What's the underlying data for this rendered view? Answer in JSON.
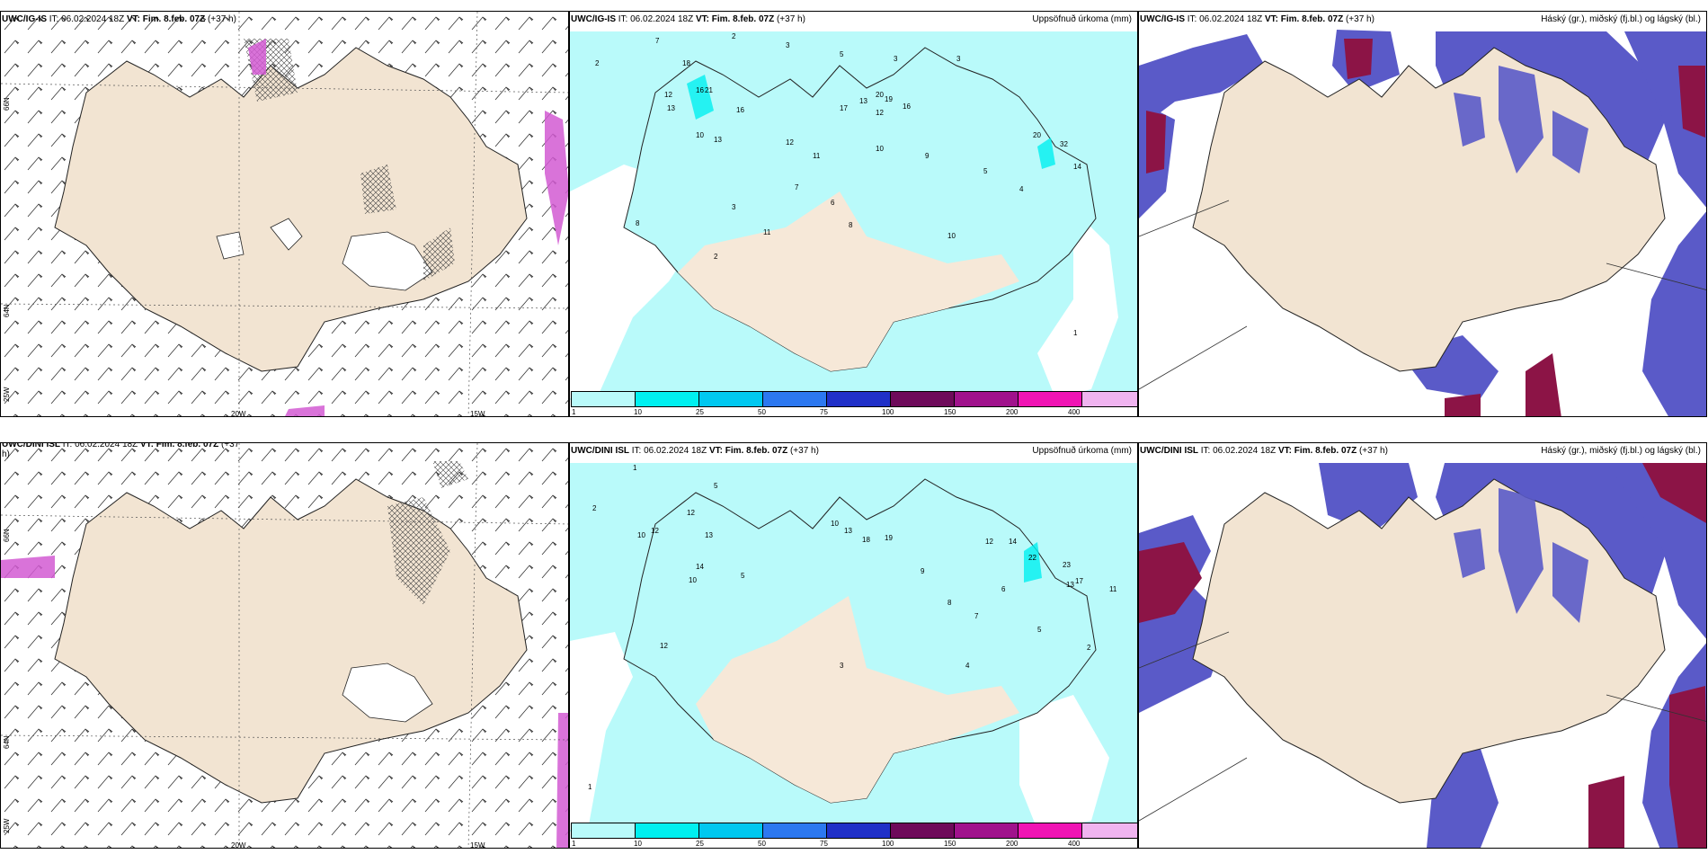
{
  "panels": [
    {
      "id": "r1c1",
      "title_model": "UWC/IG-IS",
      "title_it": " IT: 06.02.2024 18Z ",
      "title_vt": "VT: Fim. 8.feb. 07Z",
      "title_lead": " (+37 h)",
      "right": ""
    },
    {
      "id": "r1c2",
      "title_model": "UWC/IG-IS",
      "title_it": " IT: 06.02.2024 18Z ",
      "title_vt": "VT: Fim. 8.feb. 07Z",
      "title_lead": " (+37 h)",
      "right": "Uppsöfnuð úrkoma (mm)"
    },
    {
      "id": "r1c3",
      "title_model": "UWC/IG-IS",
      "title_it": " IT: 06.02.2024 18Z ",
      "title_vt": "VT: Fim. 8.feb. 07Z",
      "title_lead": " (+37 h)",
      "right": "Háský (gr.), miðský (fj.bl.) og lágský (bl.)"
    },
    {
      "id": "r2c1",
      "title_model": "UWC/DINI ISL",
      "title_it": " IT: 06.02.2024 18Z ",
      "title_vt": "VT: Fim. 8.feb. 07Z",
      "title_lead": " (+37",
      "right": "",
      "wrap": "h)"
    },
    {
      "id": "r2c2",
      "title_model": "UWC/DINI ISL",
      "title_it": " IT: 06.02.2024 18Z ",
      "title_vt": "VT: Fim. 8.feb. 07Z",
      "title_lead": " (+37 h)",
      "right": "Uppsöfnuð úrkoma (mm)"
    },
    {
      "id": "r2c3",
      "title_model": "UWC/DINI ISL",
      "title_it": " IT: 06.02.2024 18Z ",
      "title_vt": "VT: Fim. 8.feb. 07Z",
      "title_lead": " (+37 h)",
      "right": "Háský (gr.), miðský (fj.bl.) og lágský (bl.)"
    }
  ],
  "precip_scale": {
    "ticks": [
      "1",
      "10",
      "25",
      "50",
      "75",
      "100",
      "150",
      "200",
      "400"
    ],
    "colors": [
      "#b9fafa",
      "#00f0f0",
      "#00c8f0",
      "#2c78f0",
      "#2030c8",
      "#6e0a5a",
      "#a0128c",
      "#f014b4",
      "#f0b4f0"
    ]
  },
  "axes": {
    "lon": [
      "20W",
      "15W"
    ],
    "lat": [
      "66N",
      "64N",
      "25W"
    ]
  },
  "precip_values_r1": [
    "2",
    "7",
    "2",
    "3",
    "5",
    "3",
    "3",
    "18",
    "16",
    "12",
    "13",
    "21",
    "16",
    "20",
    "17",
    "13",
    "12",
    "19",
    "16",
    "10",
    "13",
    "12",
    "11",
    "10",
    "9",
    "20",
    "32",
    "14",
    "8",
    "11",
    "10",
    "8",
    "7",
    "6",
    "5",
    "4",
    "3",
    "2",
    "1"
  ],
  "precip_values_r2": [
    "1",
    "5",
    "2",
    "12",
    "10",
    "12",
    "13",
    "14",
    "10",
    "5",
    "13",
    "18",
    "19",
    "10",
    "12",
    "14",
    "22",
    "23",
    "13",
    "17",
    "11",
    "12",
    "9",
    "8",
    "7",
    "6",
    "5",
    "4",
    "3",
    "2",
    "1"
  ],
  "colors": {
    "land": "#f2e4d2",
    "land_wind": "#eadccb",
    "precip_light": "#b9fafa",
    "cloud_high": "#8c1446",
    "cloud_mid": "#5a5ac8",
    "cloud_low": "#64c8f0",
    "snow_magenta": "#d25ad2"
  }
}
